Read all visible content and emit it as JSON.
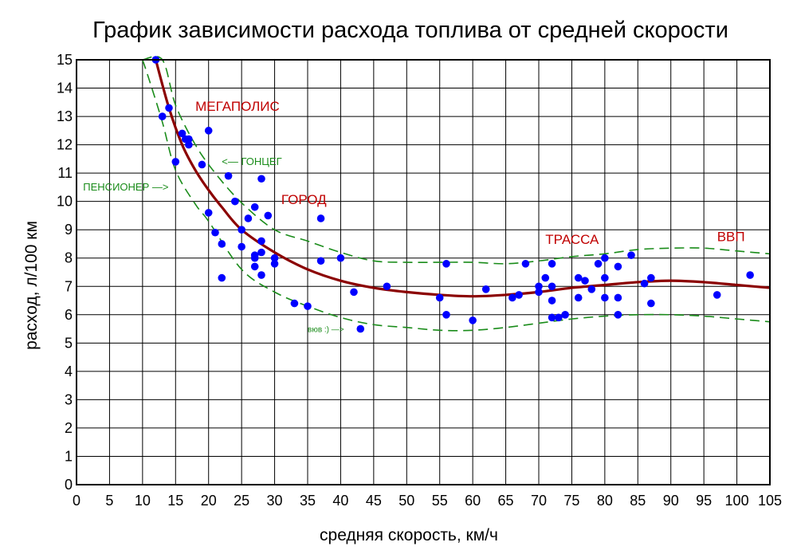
{
  "chart_data": {
    "type": "scatter",
    "title": "График зависимости расхода топлива от средней скорости",
    "xlabel": "средняя скорость, км/ч",
    "ylabel": "расход, л/100 км",
    "xlim": [
      0,
      105
    ],
    "ylim": [
      0,
      15
    ],
    "x_ticks": [
      0,
      5,
      10,
      15,
      20,
      25,
      30,
      35,
      40,
      45,
      50,
      55,
      60,
      65,
      70,
      75,
      80,
      85,
      90,
      95,
      100,
      105
    ],
    "y_ticks": [
      0,
      1,
      2,
      3,
      4,
      5,
      6,
      7,
      8,
      9,
      10,
      11,
      12,
      13,
      14,
      15
    ],
    "grid": true,
    "colors": {
      "points": "#0000ff",
      "trend": "#8b0000",
      "bounds": "#1a8c1a",
      "annotation_red": "#c00000",
      "annotation_green": "#1a8c1a"
    },
    "points": [
      [
        12,
        15
      ],
      [
        13,
        13
      ],
      [
        14,
        13.3
      ],
      [
        15,
        11.4
      ],
      [
        16,
        12.4
      ],
      [
        16.5,
        12.2
      ],
      [
        17,
        12.2
      ],
      [
        17,
        12
      ],
      [
        19,
        11.3
      ],
      [
        20,
        12.5
      ],
      [
        20,
        9.6
      ],
      [
        21,
        8.9
      ],
      [
        22,
        8.5
      ],
      [
        22,
        7.3
      ],
      [
        23,
        10.9
      ],
      [
        24,
        10
      ],
      [
        25,
        9
      ],
      [
        25,
        8.4
      ],
      [
        26,
        9.4
      ],
      [
        27,
        9.8
      ],
      [
        27,
        8.1
      ],
      [
        27,
        8
      ],
      [
        27,
        7.7
      ],
      [
        28,
        10.8
      ],
      [
        28,
        8.6
      ],
      [
        28,
        8.2
      ],
      [
        28,
        7.4
      ],
      [
        29,
        9.5
      ],
      [
        30,
        8
      ],
      [
        30,
        7.8
      ],
      [
        33,
        6.4
      ],
      [
        35,
        6.3
      ],
      [
        37,
        9.4
      ],
      [
        37,
        7.9
      ],
      [
        40,
        8
      ],
      [
        42,
        6.8
      ],
      [
        43,
        5.5
      ],
      [
        47,
        7
      ],
      [
        55,
        6.6
      ],
      [
        56,
        7.8
      ],
      [
        56,
        6
      ],
      [
        60,
        5.8
      ],
      [
        62,
        6.9
      ],
      [
        66,
        6.6
      ],
      [
        67,
        6.7
      ],
      [
        68,
        7.8
      ],
      [
        70,
        7
      ],
      [
        70,
        6.8
      ],
      [
        71,
        7.3
      ],
      [
        72,
        7.8
      ],
      [
        72,
        7
      ],
      [
        72,
        6.5
      ],
      [
        72,
        5.9
      ],
      [
        73,
        5.9
      ],
      [
        74,
        6
      ],
      [
        76,
        7.3
      ],
      [
        76,
        6.6
      ],
      [
        77,
        7.2
      ],
      [
        78,
        6.9
      ],
      [
        79,
        7.8
      ],
      [
        80,
        8
      ],
      [
        80,
        7.3
      ],
      [
        80,
        6.6
      ],
      [
        82,
        7.7
      ],
      [
        82,
        6.6
      ],
      [
        82,
        6
      ],
      [
        84,
        8.1
      ],
      [
        86,
        7.1
      ],
      [
        87,
        7.3
      ],
      [
        87,
        6.4
      ],
      [
        97,
        6.7
      ],
      [
        102,
        7.4
      ]
    ],
    "trend_curve": [
      [
        12,
        15
      ],
      [
        14,
        13.3
      ],
      [
        16,
        12
      ],
      [
        18,
        11.1
      ],
      [
        20,
        10.4
      ],
      [
        22,
        9.8
      ],
      [
        25,
        9
      ],
      [
        30,
        8.2
      ],
      [
        35,
        7.6
      ],
      [
        40,
        7.2
      ],
      [
        45,
        6.95
      ],
      [
        50,
        6.8
      ],
      [
        55,
        6.7
      ],
      [
        60,
        6.65
      ],
      [
        65,
        6.7
      ],
      [
        70,
        6.8
      ],
      [
        75,
        6.95
      ],
      [
        80,
        7.05
      ],
      [
        85,
        7.15
      ],
      [
        90,
        7.2
      ],
      [
        95,
        7.15
      ],
      [
        100,
        7.05
      ],
      [
        105,
        6.95
      ]
    ],
    "upper_bound": [
      [
        10,
        15
      ],
      [
        13,
        15
      ],
      [
        15,
        13.4
      ],
      [
        18,
        12
      ],
      [
        21,
        11
      ],
      [
        25,
        9.95
      ],
      [
        30,
        9
      ],
      [
        35,
        8.6
      ],
      [
        40,
        8.2
      ],
      [
        45,
        7.9
      ],
      [
        50,
        7.85
      ],
      [
        55,
        7.85
      ],
      [
        60,
        7.85
      ],
      [
        65,
        7.8
      ],
      [
        70,
        7.9
      ],
      [
        75,
        8.05
      ],
      [
        80,
        8.15
      ],
      [
        85,
        8.3
      ],
      [
        90,
        8.35
      ],
      [
        95,
        8.35
      ],
      [
        100,
        8.25
      ],
      [
        105,
        8.15
      ]
    ],
    "lower_bound": [
      [
        10,
        15
      ],
      [
        11,
        14.3
      ],
      [
        13,
        12.8
      ],
      [
        15,
        11.1
      ],
      [
        18,
        9.9
      ],
      [
        20,
        9.3
      ],
      [
        25,
        7.6
      ],
      [
        30,
        6.8
      ],
      [
        35,
        6.3
      ],
      [
        40,
        5.9
      ],
      [
        45,
        5.65
      ],
      [
        50,
        5.55
      ],
      [
        55,
        5.45
      ],
      [
        60,
        5.45
      ],
      [
        65,
        5.55
      ],
      [
        70,
        5.7
      ],
      [
        75,
        5.85
      ],
      [
        80,
        5.95
      ],
      [
        85,
        6
      ],
      [
        90,
        6
      ],
      [
        95,
        5.95
      ],
      [
        100,
        5.85
      ],
      [
        105,
        5.75
      ]
    ],
    "annotations_red": [
      {
        "text": "МЕГАПОЛИС",
        "x": 18,
        "y": 13.2
      },
      {
        "text": "ГОРОД",
        "x": 31,
        "y": 9.9
      },
      {
        "text": "ТРАССА",
        "x": 71,
        "y": 8.5
      },
      {
        "text": "ВВП",
        "x": 97,
        "y": 8.6
      }
    ],
    "annotations_green": [
      {
        "text": "<— ГОНЦЕГ",
        "x": 22,
        "y": 11.4
      },
      {
        "text": "ПЕНСИОНЕР —>",
        "x": 1,
        "y": 10.5
      },
      {
        "text": "вюв :) —>",
        "x": 35,
        "y": 5.5
      }
    ]
  }
}
